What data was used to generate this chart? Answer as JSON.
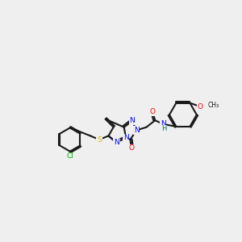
{
  "background_color": "#efefef",
  "bond_color": "#1a1a1a",
  "atom_colors": {
    "N": "#0000ff",
    "O": "#ff0000",
    "S": "#ccbb00",
    "Cl": "#00aa00",
    "H": "#007070",
    "C": "#1a1a1a"
  },
  "figsize": [
    3.0,
    3.0
  ],
  "dpi": 100
}
